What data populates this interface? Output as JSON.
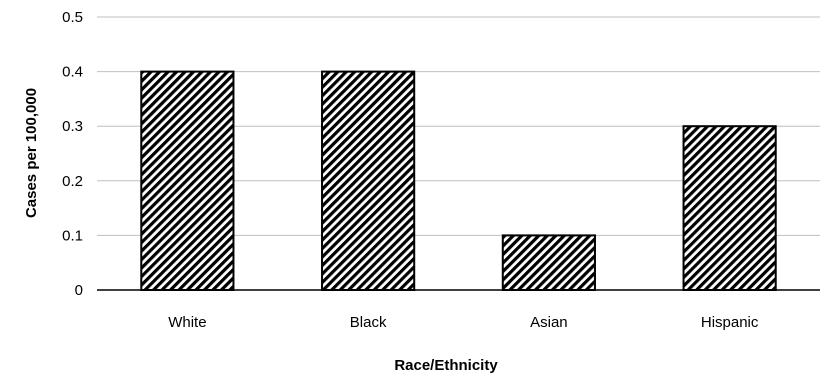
{
  "chart_data": {
    "type": "bar",
    "title": "",
    "xlabel": "Race/Ethnicity",
    "ylabel": "Cases per 100,000",
    "categories": [
      "White",
      "Black",
      "Asian",
      "Hispanic"
    ],
    "values": [
      0.4,
      0.4,
      0.1,
      0.3
    ],
    "ylim": [
      0,
      0.5
    ],
    "yticks": [
      "0",
      "0.1",
      "0.2",
      "0.3",
      "0.4",
      "0.5"
    ],
    "grid": true,
    "legend": "none",
    "colors": {
      "bar_fill_pattern": "diagonal-hatch",
      "bar_stroke": "#000000",
      "grid": "#bfbfbf",
      "axis": "#000000"
    }
  }
}
